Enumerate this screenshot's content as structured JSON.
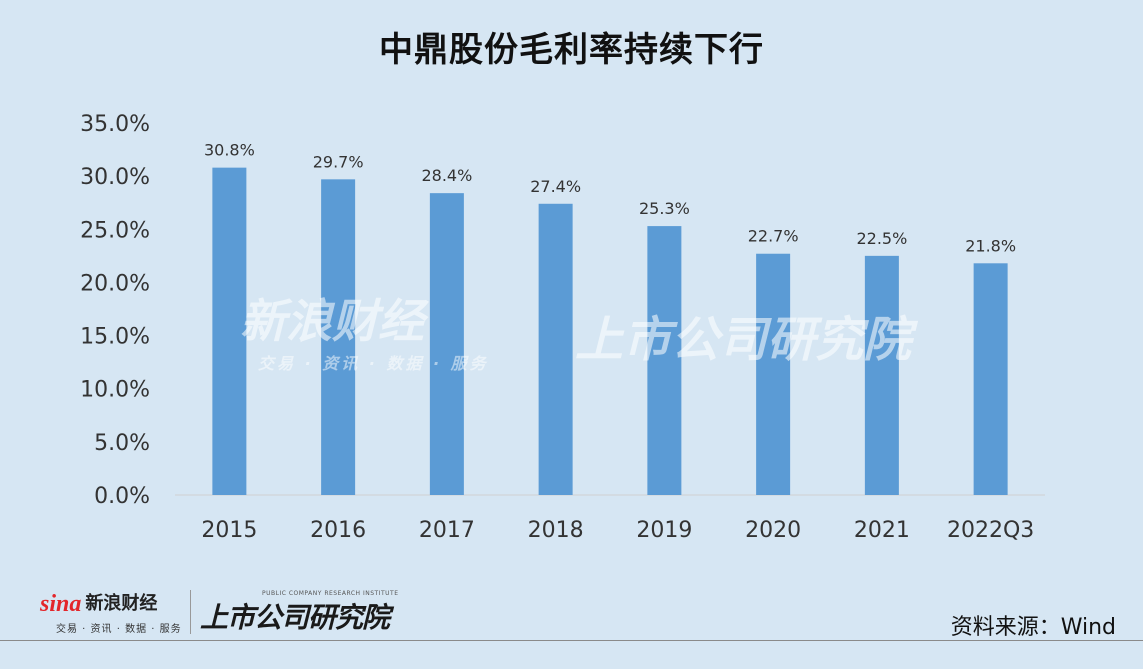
{
  "chart_data": {
    "type": "bar",
    "title": "中鼎股份毛利率持续下行",
    "categories": [
      "2015",
      "2016",
      "2017",
      "2018",
      "2019",
      "2020",
      "2021",
      "2022Q3"
    ],
    "values": [
      30.8,
      29.7,
      28.4,
      27.4,
      25.3,
      22.7,
      22.5,
      21.8
    ],
    "value_labels": [
      "30.8%",
      "29.7%",
      "28.4%",
      "27.4%",
      "25.3%",
      "22.7%",
      "22.5%",
      "21.8%"
    ],
    "y_ticks": [
      "0.0%",
      "5.0%",
      "10.0%",
      "15.0%",
      "20.0%",
      "25.0%",
      "30.0%",
      "35.0%"
    ],
    "ylim": [
      0,
      35
    ],
    "xlabel": "",
    "ylabel": "",
    "grid": false,
    "bar_color": "#5b9bd5"
  },
  "watermarks": {
    "sina_logo": "sina",
    "sina_name": "新浪财经",
    "sina_sub": "交易 · 资讯 · 数据 · 服务",
    "institute": "上市公司研究院"
  },
  "footer": {
    "sina_logo": "sina",
    "sina_name": "新浪财经",
    "sina_sub": "交易 · 资讯 · 数据 · 服务",
    "institute": "上市公司研究院",
    "institute_en": "PUBLIC COMPANY RESEARCH INSTITUTE",
    "source": "资料来源：Wind"
  }
}
